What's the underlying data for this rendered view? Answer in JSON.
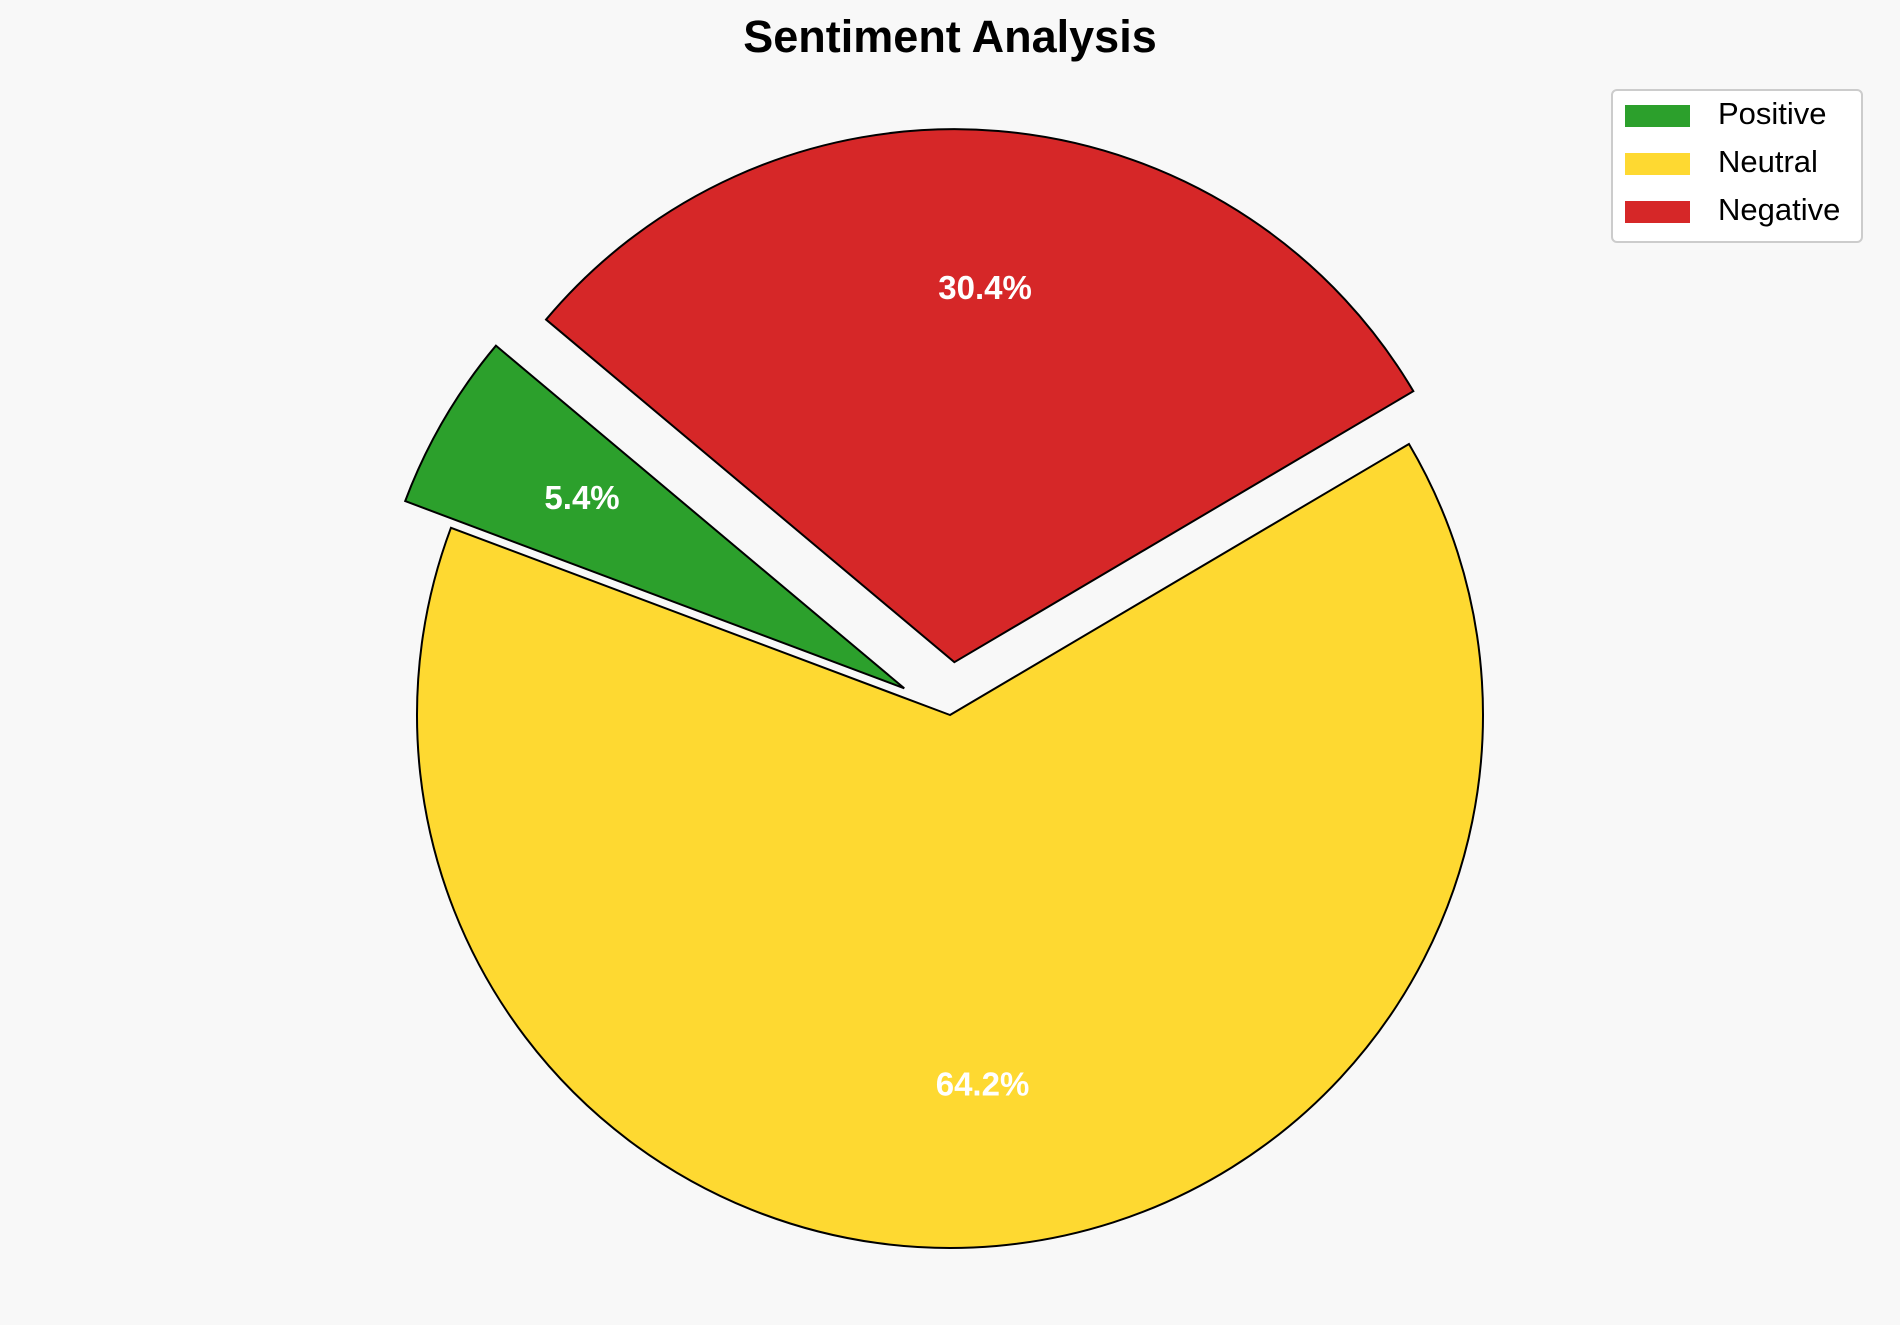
{
  "chart_data": {
    "type": "pie",
    "title": "Sentiment Analysis",
    "categories": [
      "Positive",
      "Neutral",
      "Negative"
    ],
    "values": [
      5.4,
      64.2,
      30.4
    ],
    "value_labels": [
      "5.4%",
      "64.2%",
      "30.4%"
    ],
    "colors": [
      "#2ca02c",
      "#fed931",
      "#d62728"
    ],
    "legend": "upper right"
  }
}
